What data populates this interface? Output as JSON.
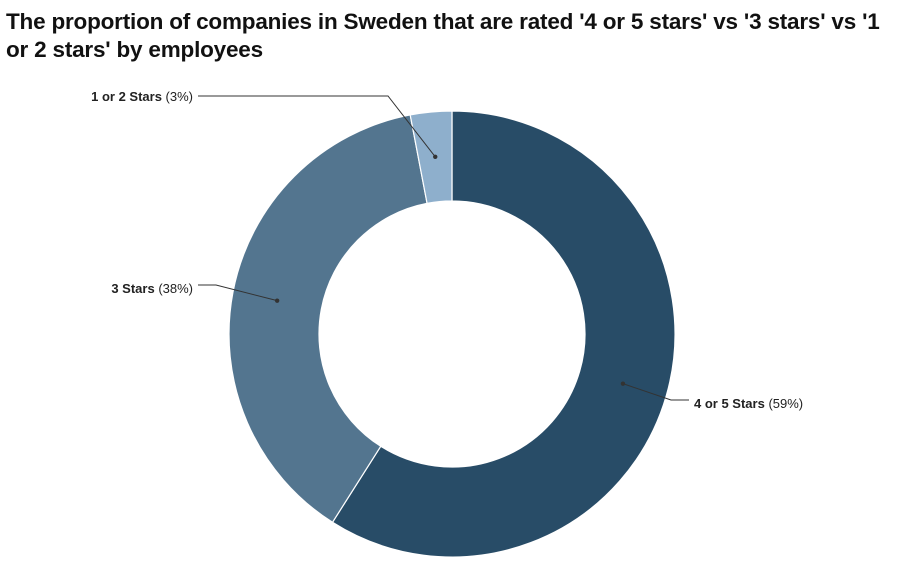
{
  "chart_data": {
    "type": "pie",
    "title": "The proportion of companies in Sweden that are rated '4 or 5 stars' vs '3 stars' vs '1 or 2 stars' by employees",
    "categories": [
      "4 or 5 Stars",
      "3 Stars",
      "1 or 2 Stars"
    ],
    "values": [
      59,
      38,
      3
    ],
    "value_labels": [
      "(59%)",
      "(38%)",
      "(3%)"
    ],
    "colors": [
      "#284c67",
      "#53758f",
      "#8eafcc"
    ],
    "donut": true
  }
}
